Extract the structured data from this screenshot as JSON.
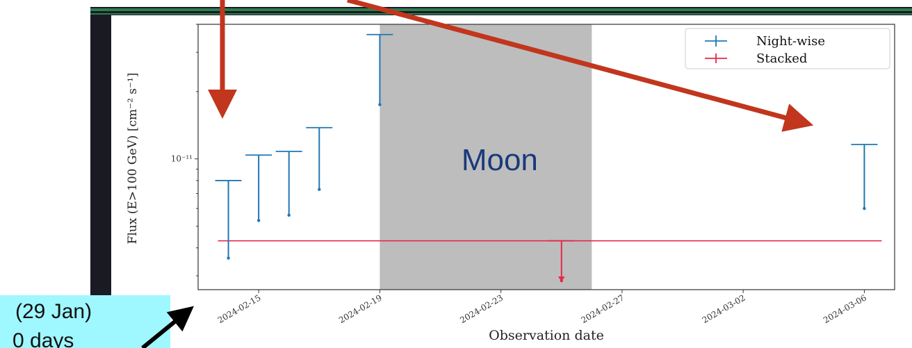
{
  "chart_data": {
    "type": "scatter",
    "xlabel": "Observation date",
    "ylabel": "Flux (E>100 GeV) [cm⁻² s⁻¹]",
    "y_scale": "log",
    "ylim": [
      2.6e-12,
      4e-11
    ],
    "xlim": [
      "2024-02-13",
      "2024-03-07"
    ],
    "x_ticks": [
      "2024-02-15",
      "2024-02-19",
      "2024-02-23",
      "2024-02-27",
      "2024-03-02",
      "2024-03-06"
    ],
    "y_ticks": [
      {
        "value": 1e-11,
        "label": "10⁻¹¹"
      }
    ],
    "legend": {
      "position": "top-right"
    },
    "series": [
      {
        "name": "Night-wise",
        "color": "#1f77b4",
        "points": [
          {
            "x": "2024-02-14",
            "low": 3.6e-12,
            "high": 8e-12
          },
          {
            "x": "2024-02-15",
            "low": 5.3e-12,
            "high": 1.04e-11
          },
          {
            "x": "2024-02-16",
            "low": 5.6e-12,
            "high": 1.08e-11
          },
          {
            "x": "2024-02-17",
            "low": 7.3e-12,
            "high": 1.38e-11
          },
          {
            "x": "2024-02-19",
            "low": 1.75e-11,
            "high": 3.6e-11
          },
          {
            "x": "2024-03-06",
            "low": 6e-12,
            "high": 1.16e-11
          }
        ]
      },
      {
        "name": "Stacked",
        "color": "#e8274b",
        "level": 4.3e-12,
        "level_range": [
          "2024-02-14",
          "2024-03-06"
        ],
        "points": [
          {
            "x": "2024-02-25",
            "low": 2.85e-12,
            "high": 4.3e-12
          }
        ]
      }
    ],
    "shaded_region": {
      "from": "2024-02-19",
      "to": "2024-02-26",
      "label": "Moon",
      "color": "#bdbdbd"
    }
  },
  "overlay": {
    "note_line1": "(29 Jan)",
    "note_line2": "0 days",
    "arrow_color": "#c1361d",
    "note_bg": "#9ff7ff"
  }
}
